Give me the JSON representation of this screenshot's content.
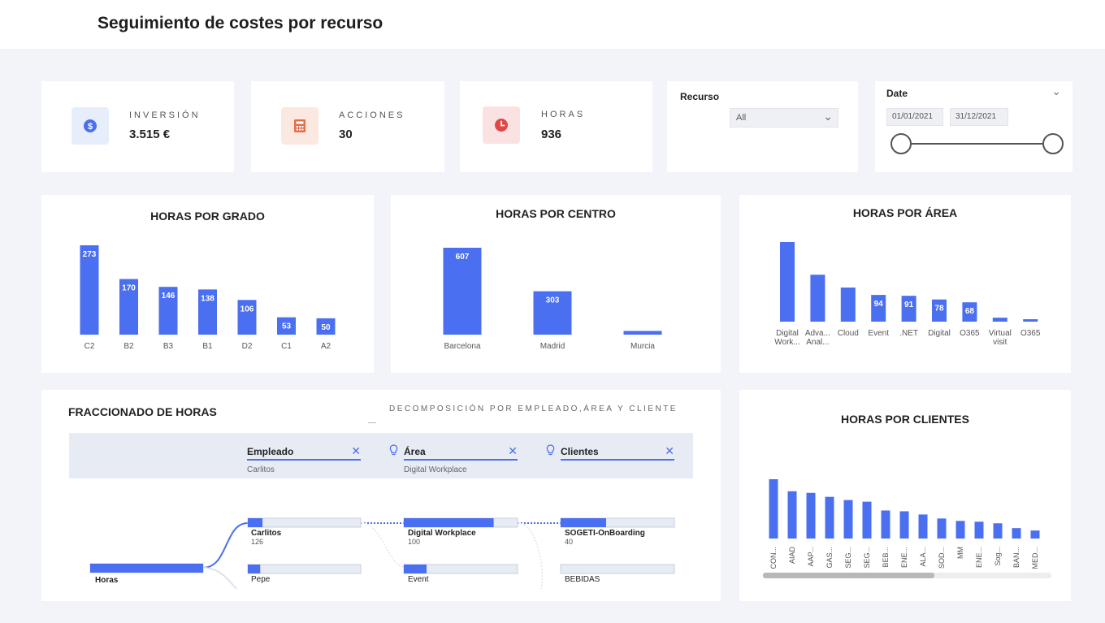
{
  "page": {
    "title": "Seguimiento de costes por recurso"
  },
  "colors": {
    "accent": "#4a6ff0",
    "inversion_icon_bg": "#e6edfb",
    "acciones_icon_bg": "#fbe8e1",
    "horas_icon_bg": "#fbe2e2"
  },
  "kpis": [
    {
      "label": "INVERSIÓN",
      "value": "3.515 €",
      "icon": "dollar-coin-icon"
    },
    {
      "label": "ACCIONES",
      "value": "30",
      "icon": "calculator-icon"
    },
    {
      "label": "HORAS",
      "value": "936",
      "icon": "clock-icon"
    }
  ],
  "slicers": {
    "recurso": {
      "title": "Recurso",
      "selected": "All"
    },
    "date": {
      "title": "Date",
      "start": "01/01/2021",
      "end": "31/12/2021"
    }
  },
  "charts": {
    "grado": {
      "title": "HORAS POR GRADO"
    },
    "centro": {
      "title": "HORAS POR CENTRO"
    },
    "area": {
      "title": "HORAS POR ÁREA"
    },
    "clientes": {
      "title": "HORAS POR CLIENTES"
    }
  },
  "chart_data": [
    {
      "type": "bar",
      "title": "HORAS POR GRADO",
      "categories": [
        "C2",
        "B2",
        "B3",
        "B1",
        "D2",
        "C1",
        "A2"
      ],
      "values": [
        273,
        170,
        146,
        138,
        106,
        53,
        50
      ],
      "data_labels": true,
      "ylim": [
        0,
        273
      ]
    },
    {
      "type": "bar",
      "title": "HORAS POR CENTRO",
      "categories": [
        "Barcelona",
        "Madrid",
        "Murcia"
      ],
      "values": [
        607,
        303,
        26
      ],
      "data_labels": [
        true,
        true,
        false
      ],
      "ylim": [
        0,
        607
      ]
    },
    {
      "type": "bar",
      "title": "HORAS POR ÁREA",
      "categories": [
        "Digital Work...",
        "Adva... Anal...",
        "Cloud",
        "Event",
        ".NET",
        "Digital",
        "O365",
        "Virtual visit",
        "O365"
      ],
      "values": [
        280,
        165,
        120,
        94,
        91,
        78,
        68,
        14,
        8
      ],
      "data_labels": [
        false,
        false,
        false,
        true,
        true,
        true,
        true,
        false,
        false
      ],
      "ylim": [
        0,
        280
      ]
    },
    {
      "type": "bar",
      "title": "HORAS POR CLIENTES",
      "categories": [
        "CON...",
        "AIAD",
        "AAP...",
        "GAS...",
        "SEG...",
        "SEG...",
        "BEB...",
        "ENE...",
        "ALA...",
        "SOD...",
        "MM",
        "ENE...",
        "Sog...",
        "BAN...",
        "MED..."
      ],
      "values": [
        74,
        59,
        57,
        52,
        48,
        46,
        35,
        34,
        30,
        25,
        22,
        21,
        19,
        13,
        10
      ],
      "data_labels": false,
      "ylim": [
        0,
        74
      ]
    }
  ],
  "decomposition": {
    "title": "FRACCIONADO DE HORAS",
    "subtitle": "DECOMPOSICIÓN POR EMPLEADO,ÁREA Y CLIENTE",
    "columns": [
      {
        "name": "Empleado",
        "selected": "Carlitos"
      },
      {
        "name": "Área",
        "selected": "Digital Workplace"
      },
      {
        "name": "Clientes",
        "selected": ""
      }
    ],
    "root": {
      "label": "Horas",
      "fill": 1.0
    },
    "level1": [
      {
        "label": "Carlitos",
        "value": "126",
        "fill": 0.13
      },
      {
        "label": "Pepe",
        "value": "",
        "fill": 0.11
      }
    ],
    "level2": [
      {
        "label": "Digital Workplace",
        "value": "100",
        "fill": 0.79
      },
      {
        "label": "Event",
        "value": "",
        "fill": 0.2
      }
    ],
    "level3": [
      {
        "label": "SOGETI-OnBoarding",
        "value": "40",
        "fill": 0.4
      },
      {
        "label": "BEBIDAS",
        "value": "",
        "fill": 0.0
      }
    ]
  }
}
